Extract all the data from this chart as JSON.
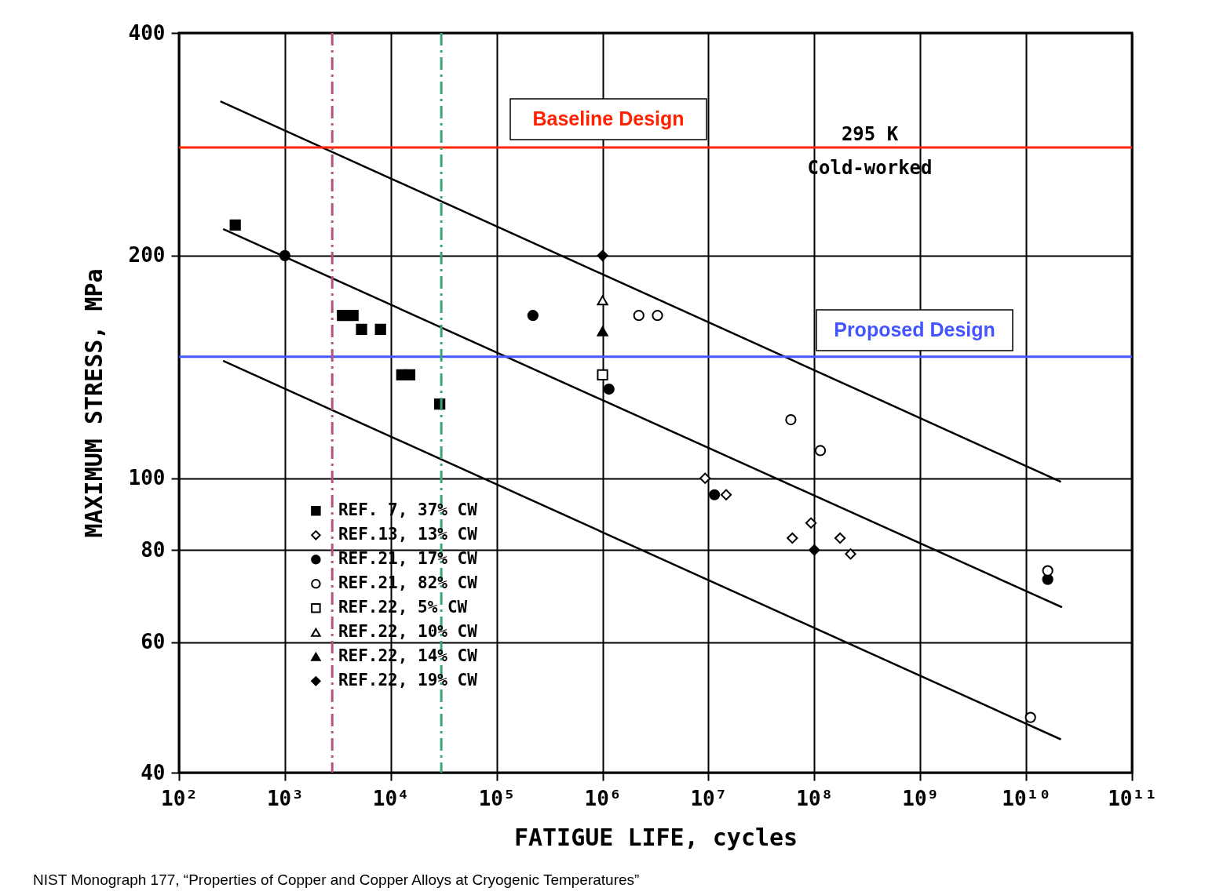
{
  "chart_data": {
    "type": "scatter",
    "xlabel": "FATIGUE LIFE, cycles",
    "ylabel": "MAXIMUM STRESS, MPa",
    "log": "xy",
    "grid": true,
    "legend": "bottom left",
    "xlim": [
      100,
      100000000000
    ],
    "ylim": [
      40,
      400
    ],
    "xticks": [
      {
        "value": 100,
        "label": "10²"
      },
      {
        "value": 1000,
        "label": "10³"
      },
      {
        "value": 10000,
        "label": "10⁴"
      },
      {
        "value": 100000,
        "label": "10⁵"
      },
      {
        "value": 1000000,
        "label": "10⁶"
      },
      {
        "value": 10000000,
        "label": "10⁷"
      },
      {
        "value": 100000000,
        "label": "10⁸"
      },
      {
        "value": 1000000000,
        "label": "10⁹"
      },
      {
        "value": 10000000000,
        "label": "10¹⁰"
      },
      {
        "value": 100000000000,
        "label": "10¹¹"
      }
    ],
    "yticks": [
      40,
      60,
      80,
      100,
      200,
      400
    ],
    "series": [
      {
        "name": "REF. 7, 37% CW",
        "type": "scatter",
        "marker": "square",
        "color": "#000000",
        "x": [
          340,
          3500,
          4400,
          5300,
          8000,
          12700,
          15100,
          29000
        ],
        "values": [
          220,
          166,
          166,
          159,
          159,
          138,
          138,
          126
        ]
      },
      {
        "name": "REF.13, 13% CW",
        "type": "scatter",
        "marker": "diamond",
        "color": "#ffffff",
        "x": [
          9300000,
          14700000,
          62000000,
          93000000,
          175000000,
          220000000
        ],
        "values": [
          100,
          95,
          83,
          87,
          83,
          79
        ]
      },
      {
        "name": "REF.21, 17% CW",
        "type": "scatter",
        "marker": "circle",
        "color": "#000000",
        "x": [
          1000,
          220000,
          1150000,
          11400000,
          16000000000
        ],
        "values": [
          200,
          166,
          132,
          95,
          73
        ]
      },
      {
        "name": "REF.21, 82% CW",
        "type": "scatter",
        "marker": "circle",
        "color": "#ffffff",
        "x": [
          2200000,
          3300000,
          60000000,
          114000000,
          11000000000,
          16000000000
        ],
        "values": [
          166,
          166,
          120,
          109,
          47.5,
          75
        ]
      },
      {
        "name": "REF.22, 5% CW",
        "type": "scatter",
        "marker": "square",
        "color": "#ffffff",
        "x": [
          1000000
        ],
        "values": [
          138
        ]
      },
      {
        "name": "REF.22, 10% CW",
        "type": "scatter",
        "marker": "triangle",
        "color": "#ffffff",
        "x": [
          1000000
        ],
        "values": [
          174
        ]
      },
      {
        "name": "REF.22, 14% CW",
        "type": "scatter",
        "marker": "triangle",
        "color": "#000000",
        "x": [
          1000000
        ],
        "values": [
          158
        ]
      },
      {
        "name": "REF.22, 19% CW",
        "type": "scatter",
        "marker": "diamond",
        "color": "#000000",
        "x": [
          1000000,
          100000000
        ],
        "values": [
          200,
          80
        ]
      },
      {
        "type": "line",
        "color": "#000000",
        "line_style": "solid",
        "x": [
          250,
          21000000000
        ],
        "values": [
          323,
          99
        ]
      },
      {
        "type": "line",
        "color": "#000000",
        "line_style": "solid",
        "x": [
          265,
          21500000000
        ],
        "values": [
          217,
          67
        ]
      },
      {
        "type": "line",
        "color": "#000000",
        "line_style": "solid",
        "x": [
          265,
          21000000000
        ],
        "values": [
          144,
          44.4
        ]
      }
    ],
    "ref_lines": [
      {
        "axis": "y",
        "value": 280,
        "label": "Baseline Design",
        "color": "#ff2200",
        "line_style": "solid"
      },
      {
        "axis": "y",
        "value": 146,
        "label": "Proposed Design",
        "color": "#4455ff",
        "line_style": "solid"
      },
      {
        "axis": "x",
        "value": 2800,
        "color": "#b5527f",
        "line_style": "dashed"
      },
      {
        "axis": "x",
        "value": 30000,
        "color": "#3aa677",
        "line_style": "dashed"
      }
    ],
    "annotations": [
      "295 K",
      "Cold-worked",
      "NIST Monograph 177, “Properties of Copper and Copper Alloys at Cryogenic Temperatures”"
    ]
  }
}
